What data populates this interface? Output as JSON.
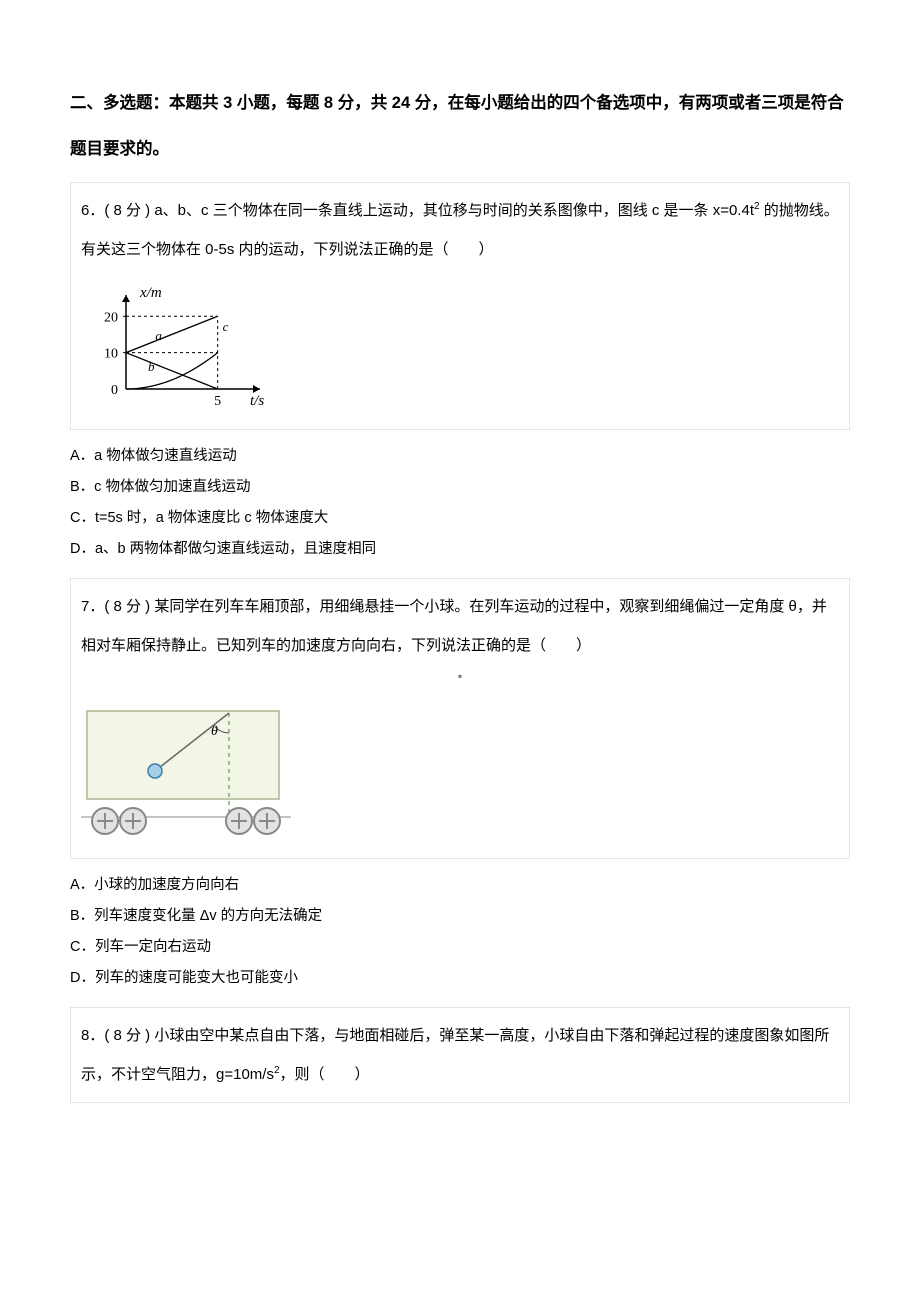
{
  "section": {
    "heading": "二、多选题：本题共 3 小题，每题 8 分，共 24 分，在每小题给出的四个备选项中，有两项或者三项是符合题目要求的。"
  },
  "q6": {
    "prompt_pre": "6．( 8 分 ) a、b、c 三个物体在同一条直线上运动，其位移与时间的关系图像中，图线 c 是一条 x=0.4t",
    "prompt_post": " 的抛物线。有关这三个物体在 0-5s 内的运动，下列说法正确的是（　　）",
    "sup": "2",
    "chart": {
      "type": "line",
      "y_label": "x/m",
      "x_label": "t/s",
      "xlim": [
        0,
        6
      ],
      "ylim": [
        0,
        22
      ],
      "y_ticks": [
        0,
        10,
        20
      ],
      "y_tick_labels": [
        "0",
        "10",
        "20"
      ],
      "x_ticks": [
        5
      ],
      "x_tick_labels": [
        "5"
      ],
      "guide_color": "#000000",
      "axis_color": "#000000",
      "line_a": {
        "label": "a",
        "points": [
          [
            0,
            10
          ],
          [
            5,
            20
          ]
        ]
      },
      "line_b": {
        "label": "b",
        "points": [
          [
            0,
            10
          ],
          [
            5,
            0
          ]
        ]
      },
      "curve_c": {
        "label": "c",
        "coef": 0.4,
        "t_end": 5
      },
      "label_fontsize": 15
    },
    "options": {
      "A": "A．a 物体做匀速直线运动",
      "B": "B．c 物体做匀加速直线运动",
      "C": "C．t=5s 时，a 物体速度比 c 物体速度大",
      "D": "D．a、b 两物体都做匀速直线运动，且速度相同"
    }
  },
  "q7": {
    "prompt": "7．( 8 分 ) 某同学在列车车厢顶部，用细绳悬挂一个小球。在列车运动的过程中，观察到细绳偏过一定角度 θ，并相对车厢保持静止。已知列车的加速度方向向右，下列说法正确的是（　　）",
    "center_dot": "▪",
    "figure": {
      "type": "diagram",
      "box_fill": "#f3f5e6",
      "box_stroke": "#c2c6a8",
      "rope_color": "#666666",
      "theta_label": "θ",
      "ball_fill": "#a6d0ea",
      "ball_stroke": "#3b7ea8",
      "wheel_fill": "#e2e2e2",
      "wheel_stroke": "#888888",
      "vertical_dash_color": "#74b25f"
    },
    "options": {
      "A": "A．小球的加速度方向向右",
      "B": "B．列车速度变化量 Δv 的方向无法确定",
      "C": "C．列车一定向右运动",
      "D": "D．列车的速度可能变大也可能变小"
    }
  },
  "q8": {
    "prompt_pre": "8．( 8 分 ) 小球由空中某点自由下落，与地面相碰后，弹至某一高度，小球自由下落和弹起过程的速度图象如图所示，不计空气阻力，g=10m/s",
    "sup": "2",
    "prompt_post": "，则（　　）"
  }
}
